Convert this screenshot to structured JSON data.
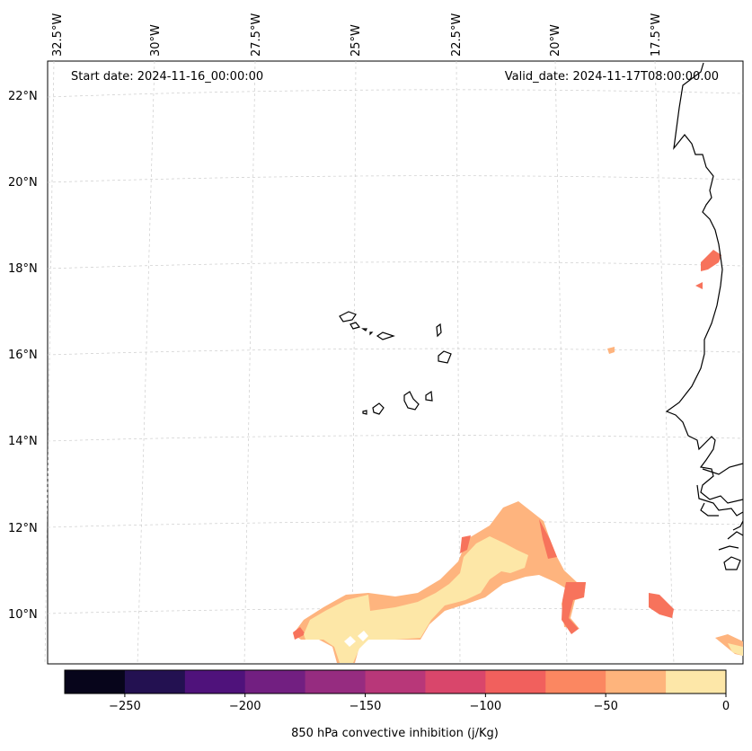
{
  "header": {
    "start_date": "Start date: 2024-11-16_00:00:00",
    "valid_date": "Valid_date: 2024-11-17T08:00:00.00"
  },
  "map": {
    "lon_labels": [
      "32.5°W",
      "30°W",
      "27.5°W",
      "25°W",
      "22.5°W",
      "20°W",
      "17.5°W"
    ],
    "lat_labels": [
      "22°N",
      "20°N",
      "18°N",
      "16°N",
      "14°N",
      "12°N",
      "10°N"
    ],
    "gridlines": "dashed light gray",
    "field_colors": {
      "light": "#fde7a7",
      "orange": "#feb47e",
      "red": "#f7735c"
    }
  },
  "colorbar": {
    "label": "850 hPa convective inhibition (j/Kg)",
    "tick_labels": [
      "−250",
      "−200",
      "−150",
      "−100",
      "−50",
      "0"
    ],
    "range": [
      -275,
      0
    ],
    "colors": [
      "#07051b",
      "#231151",
      "#4f127b",
      "#721f81",
      "#962c80",
      "#b83779",
      "#d9466b",
      "#f1605d",
      "#fb8761",
      "#feb47c",
      "#fde7a8"
    ]
  }
}
